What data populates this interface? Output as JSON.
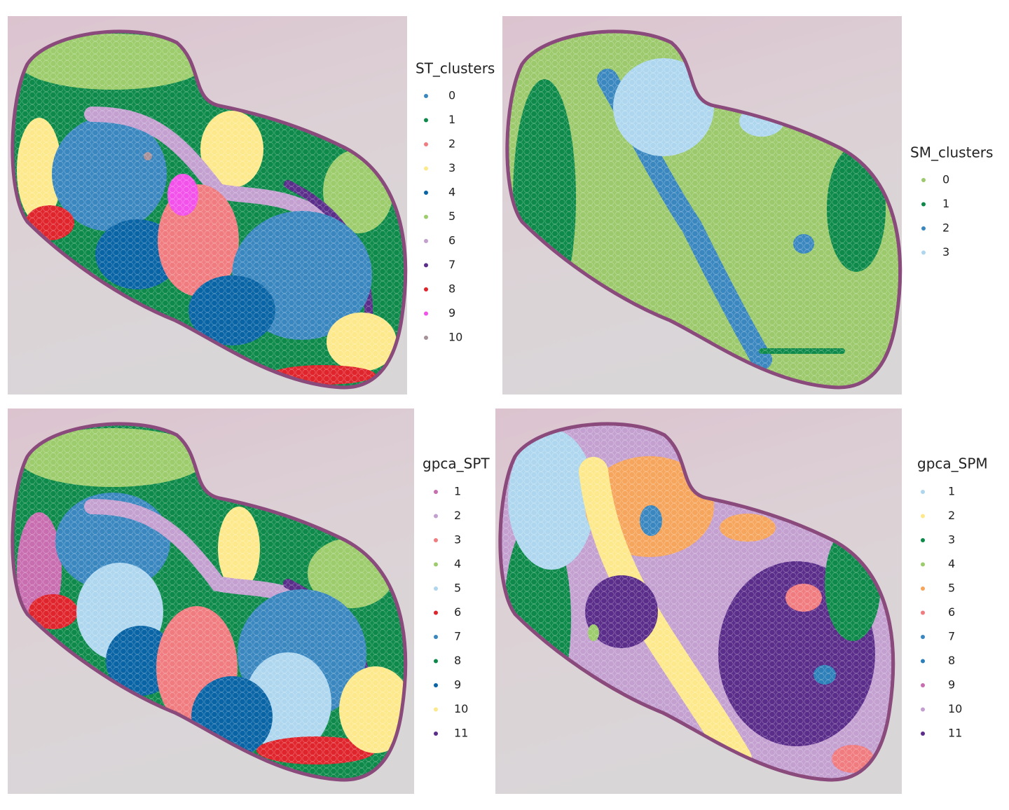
{
  "panels": [
    {
      "legend_title": "ST_clusters",
      "legend": [
        {
          "label": "0",
          "color": "#3a87c0"
        },
        {
          "label": "1",
          "color": "#0d8a4a"
        },
        {
          "label": "2",
          "color": "#f07c80"
        },
        {
          "label": "3",
          "color": "#fde98b"
        },
        {
          "label": "4",
          "color": "#0864a5"
        },
        {
          "label": "5",
          "color": "#9ccc6b"
        },
        {
          "label": "6",
          "color": "#c3a0d0"
        },
        {
          "label": "7",
          "color": "#5a2d8a"
        },
        {
          "label": "8",
          "color": "#e0242c"
        },
        {
          "label": "9",
          "color": "#f252ea"
        },
        {
          "label": "10",
          "color": "#a89098"
        }
      ]
    },
    {
      "legend_title": "SM_clusters",
      "legend": [
        {
          "label": "0",
          "color": "#9cc96b"
        },
        {
          "label": "1",
          "color": "#0d8a4a"
        },
        {
          "label": "2",
          "color": "#3a87c0"
        },
        {
          "label": "3",
          "color": "#aed7ef"
        }
      ]
    },
    {
      "legend_title": "gpca_SPT",
      "legend": [
        {
          "label": "1",
          "color": "#c86db0"
        },
        {
          "label": "2",
          "color": "#c3a0d0"
        },
        {
          "label": "3",
          "color": "#f07c80"
        },
        {
          "label": "4",
          "color": "#9ccc6b"
        },
        {
          "label": "5",
          "color": "#aed7ef"
        },
        {
          "label": "6",
          "color": "#e0242c"
        },
        {
          "label": "7",
          "color": "#3a87c0"
        },
        {
          "label": "8",
          "color": "#0d8a4a"
        },
        {
          "label": "9",
          "color": "#0864a5"
        },
        {
          "label": "10",
          "color": "#fde98b"
        },
        {
          "label": "11",
          "color": "#5a2d8a"
        }
      ]
    },
    {
      "legend_title": "gpca_SPM",
      "legend": [
        {
          "label": "1",
          "color": "#aed7ef"
        },
        {
          "label": "2",
          "color": "#fde98b"
        },
        {
          "label": "3",
          "color": "#0d8a4a"
        },
        {
          "label": "4",
          "color": "#9ccc6b"
        },
        {
          "label": "5",
          "color": "#f6a55c"
        },
        {
          "label": "6",
          "color": "#f07c80"
        },
        {
          "label": "7",
          "color": "#3a87c0"
        },
        {
          "label": "8",
          "color": "#2c7fb8"
        },
        {
          "label": "9",
          "color": "#c86db0"
        },
        {
          "label": "10",
          "color": "#c3a0d0"
        },
        {
          "label": "11",
          "color": "#5a2d8a"
        }
      ]
    }
  ]
}
